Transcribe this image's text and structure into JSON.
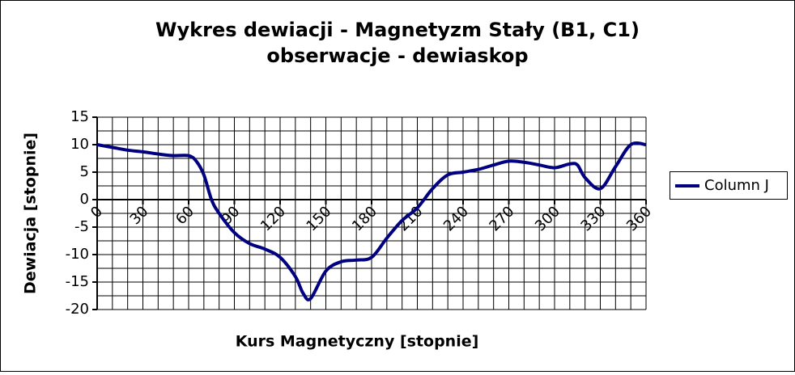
{
  "chart_data": {
    "type": "line",
    "title": "Wykres dewiacji  - Magnetyzm Stały  (B1, C1)",
    "subtitle": "obserwacje - dewiaskop",
    "x_label": "Kurs Magnetyczny   [stopnie]",
    "y_label": "Dewiacja   [stopnie]",
    "x": [
      0,
      10,
      20,
      30,
      40,
      50,
      60,
      65,
      70,
      75,
      80,
      90,
      100,
      110,
      120,
      130,
      135,
      140,
      150,
      160,
      170,
      180,
      190,
      200,
      210,
      220,
      230,
      240,
      250,
      260,
      270,
      280,
      290,
      300,
      310,
      315,
      320,
      330,
      340,
      350,
      360
    ],
    "series": [
      {
        "name": "Column J",
        "color": "#000080",
        "values": [
          10,
          9.5,
          9,
          8.7,
          8.3,
          8,
          8,
          7,
          4.5,
          0,
          -2.5,
          -6,
          -8,
          -9,
          -10.5,
          -14,
          -17,
          -18,
          -13,
          -11.3,
          -11,
          -10.5,
          -7,
          -3.8,
          -1.5,
          2,
          4.5,
          5,
          5.5,
          6.3,
          7,
          6.8,
          6.3,
          5.8,
          6.5,
          6.3,
          4,
          2,
          6,
          10,
          10
        ]
      }
    ],
    "xlim": [
      0,
      360
    ],
    "xticks": [
      0,
      30,
      60,
      90,
      120,
      150,
      180,
      210,
      240,
      270,
      300,
      330,
      360
    ],
    "ylim": [
      -20,
      15
    ],
    "yticks": [
      -20,
      -15,
      -10,
      -5,
      0,
      5,
      10,
      15
    ],
    "grid": true,
    "xgrid_step": 10,
    "ygrid_step": 2.5,
    "legend": "right"
  }
}
